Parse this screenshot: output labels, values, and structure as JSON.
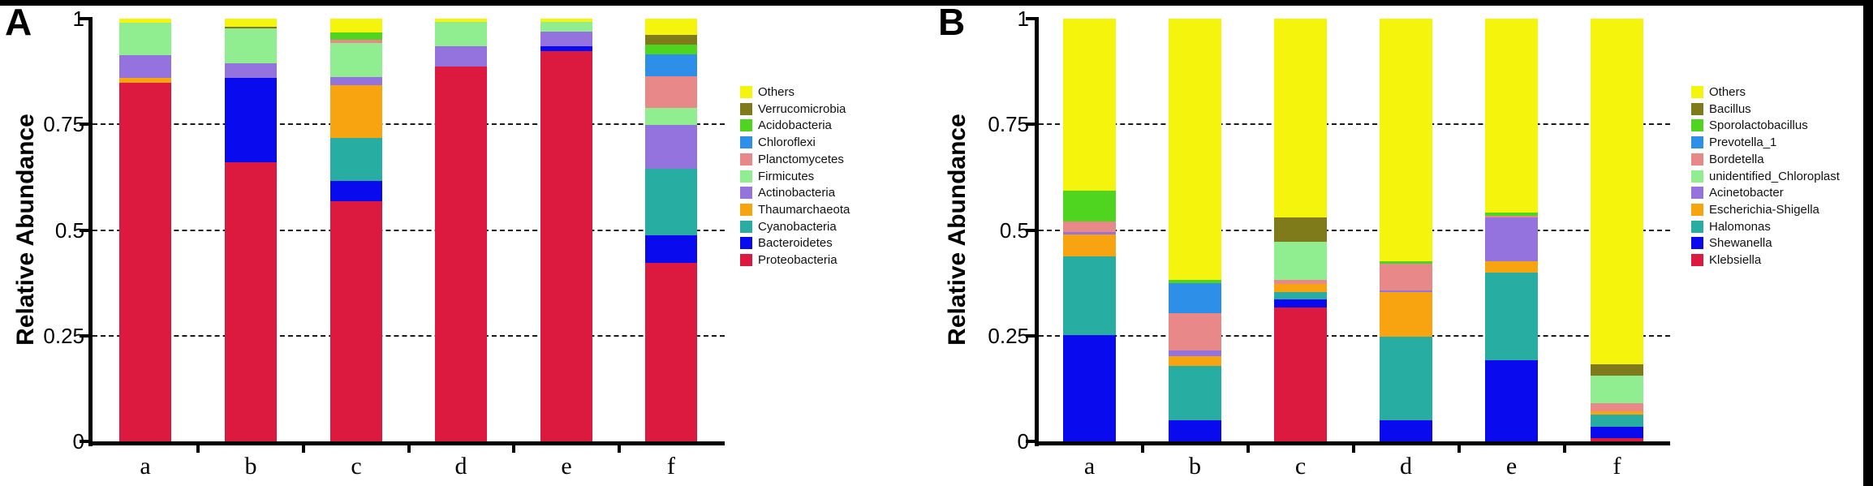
{
  "chart_data": [
    {
      "type": "bar",
      "stacked": true,
      "panel_label": "A",
      "ylabel": "Relative Abundance",
      "ylim": [
        0,
        1
      ],
      "grid": "dashed-horizontal",
      "gridline_values": [
        0.75,
        0.5,
        0.25
      ],
      "yticks": [
        {
          "label": "1",
          "value": 1
        },
        {
          "label": "0.75",
          "value": 0.75
        },
        {
          "label": "0.5",
          "value": 0.5
        },
        {
          "label": "0.25",
          "value": 0.25
        },
        {
          "label": "0",
          "value": 0
        }
      ],
      "categories": [
        "a",
        "b",
        "c",
        "d",
        "e",
        "f"
      ],
      "legend_position": "right",
      "legend_top_to_bottom": [
        "Others",
        "Verrucomicrobia",
        "Acidobacteria",
        "Chloroflexi",
        "Planctomycetes",
        "Firmicutes",
        "Actinobacteria",
        "Thaumarchaeota",
        "Cyanobacteria",
        "Bacteroidetes",
        "Proteobacteria"
      ],
      "series": [
        {
          "name": "Proteobacteria",
          "color": "#DC1A3F",
          "values": [
            0.848,
            0.66,
            0.569,
            0.887,
            0.923,
            0.423
          ]
        },
        {
          "name": "Bacteroidetes",
          "color": "#0A0AEF",
          "values": [
            0,
            0.2,
            0.048,
            0,
            0.012,
            0.064
          ]
        },
        {
          "name": "Cyanobacteria",
          "color": "#28ADA2",
          "values": [
            0,
            0,
            0.1,
            0,
            0,
            0.157
          ]
        },
        {
          "name": "Thaumarchaeota",
          "color": "#F8A411",
          "values": [
            0.012,
            0,
            0.125,
            0,
            0,
            0
          ]
        },
        {
          "name": "Actinobacteria",
          "color": "#9473DE",
          "values": [
            0.053,
            0.034,
            0.02,
            0.048,
            0.034,
            0.104
          ]
        },
        {
          "name": "Firmicutes",
          "color": "#90EE90",
          "values": [
            0.077,
            0.083,
            0.08,
            0.057,
            0.023,
            0.04
          ]
        },
        {
          "name": "Planctomycetes",
          "color": "#E88888",
          "values": [
            0,
            0,
            0.008,
            0,
            0,
            0.075
          ]
        },
        {
          "name": "Chloroflexi",
          "color": "#2E8FE8",
          "values": [
            0,
            0,
            0,
            0,
            0,
            0.052
          ]
        },
        {
          "name": "Acidobacteria",
          "color": "#4FD420",
          "values": [
            0,
            0,
            0.017,
            0,
            0,
            0.023
          ]
        },
        {
          "name": "Verrucomicrobia",
          "color": "#7F7B1A",
          "values": [
            0,
            0.004,
            0,
            0,
            0,
            0.024
          ]
        },
        {
          "name": "Others",
          "color": "#F4F40C",
          "values": [
            0.01,
            0.019,
            0.033,
            0.008,
            0.008,
            0.038
          ]
        }
      ]
    },
    {
      "type": "bar",
      "stacked": true,
      "panel_label": "B",
      "ylabel": "Relative Abundance",
      "ylim": [
        0,
        1
      ],
      "grid": "dashed-horizontal",
      "gridline_values": [
        0.75,
        0.5,
        0.25
      ],
      "yticks": [
        {
          "label": "1",
          "value": 1
        },
        {
          "label": "0.75",
          "value": 0.75
        },
        {
          "label": "0.5",
          "value": 0.5
        },
        {
          "label": "0.25",
          "value": 0.25
        },
        {
          "label": "0",
          "value": 0
        }
      ],
      "categories": [
        "a",
        "b",
        "c",
        "d",
        "e",
        "f"
      ],
      "legend_position": "right",
      "legend_top_to_bottom": [
        "Others",
        "Bacillus",
        "Sporolactobacillus",
        "Prevotella_1",
        "Bordetella",
        "unidentified_Chloroplast",
        "Acinetobacter",
        "Escherichia-Shigella",
        "Halomonas",
        "Shewanella",
        "Klebsiella"
      ],
      "series": [
        {
          "name": "Klebsiella",
          "color": "#DC1A3F",
          "values": [
            0,
            0,
            0.316,
            0,
            0,
            0.008
          ]
        },
        {
          "name": "Shewanella",
          "color": "#0A0AEF",
          "values": [
            0.251,
            0.05,
            0.02,
            0.049,
            0.192,
            0.026
          ]
        },
        {
          "name": "Halomonas",
          "color": "#28ADA2",
          "values": [
            0.187,
            0.128,
            0.018,
            0.199,
            0.208,
            0.029
          ]
        },
        {
          "name": "Escherichia-Shigella",
          "color": "#F8A411",
          "values": [
            0.051,
            0.024,
            0.019,
            0.105,
            0.026,
            0.009
          ]
        },
        {
          "name": "Acinetobacter",
          "color": "#9473DE",
          "values": [
            0.006,
            0.013,
            0,
            0.005,
            0.103,
            0
          ]
        },
        {
          "name": "Bordetella",
          "color": "#E88888",
          "values": [
            0.026,
            0.088,
            0.01,
            0.062,
            0.005,
            0.019
          ]
        },
        {
          "name": "unidentified_Chloroplast",
          "color": "#90EE90",
          "values": [
            0,
            0,
            0.09,
            0,
            0,
            0.065
          ]
        },
        {
          "name": "Prevotella_1",
          "color": "#2E8FE8",
          "values": [
            0,
            0.072,
            0,
            0,
            0,
            0
          ]
        },
        {
          "name": "Sporolactobacillus",
          "color": "#4FD420",
          "values": [
            0.073,
            0.007,
            0,
            0.007,
            0.007,
            0
          ]
        },
        {
          "name": "Bacillus",
          "color": "#7F7B1A",
          "values": [
            0,
            0,
            0.056,
            0,
            0,
            0.027
          ]
        },
        {
          "name": "Others",
          "color": "#F4F40C",
          "values": [
            0.406,
            0.618,
            0.471,
            0.573,
            0.459,
            0.817
          ]
        }
      ]
    }
  ]
}
